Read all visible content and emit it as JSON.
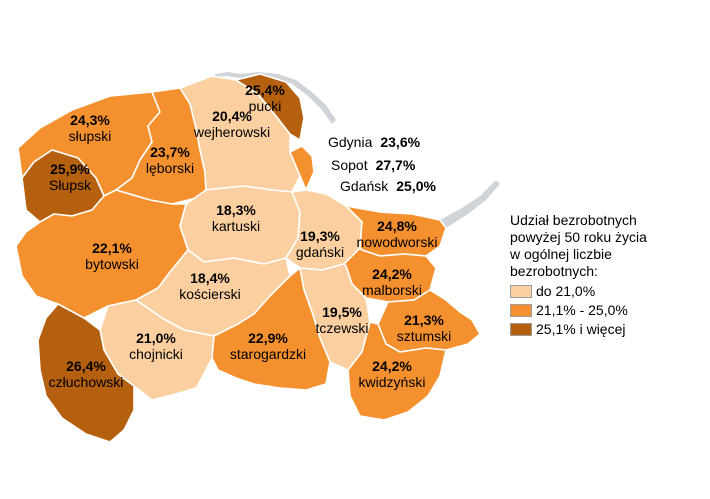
{
  "map": {
    "regions": [
      {
        "id": "slupski",
        "name": "słupski",
        "value": "24,3%",
        "class": "mid"
      },
      {
        "id": "slupsk",
        "name": "Słupsk",
        "value": "25,9%",
        "class": "high"
      },
      {
        "id": "leborski",
        "name": "lęborski",
        "value": "23,7%",
        "class": "mid"
      },
      {
        "id": "wejherowski",
        "name": "wejherowski",
        "value": "20,4%",
        "class": "low"
      },
      {
        "id": "pucki",
        "name": "pucki",
        "value": "25,4%",
        "class": "high"
      },
      {
        "id": "kartuski",
        "name": "kartuski",
        "value": "18,3%",
        "class": "low"
      },
      {
        "id": "gdanski",
        "name": "gdański",
        "value": "19,3%",
        "class": "low"
      },
      {
        "id": "nowodworski",
        "name": "nowodworski",
        "value": "24,8%",
        "class": "mid"
      },
      {
        "id": "bytowski",
        "name": "bytowski",
        "value": "22,1%",
        "class": "mid"
      },
      {
        "id": "koscierski",
        "name": "kościerski",
        "value": "18,4%",
        "class": "low"
      },
      {
        "id": "malborski",
        "name": "malborski",
        "value": "24,2%",
        "class": "mid"
      },
      {
        "id": "tczewski",
        "name": "tczewski",
        "value": "19,5%",
        "class": "low"
      },
      {
        "id": "sztumski",
        "name": "sztumski",
        "value": "21,3%",
        "class": "mid"
      },
      {
        "id": "chojnicki",
        "name": "chojnicki",
        "value": "21,0%",
        "class": "low"
      },
      {
        "id": "starogardzki",
        "name": "starogardzki",
        "value": "22,9%",
        "class": "mid"
      },
      {
        "id": "kwidzynski",
        "name": "kwidzyński",
        "value": "24,2%",
        "class": "mid"
      },
      {
        "id": "czluchowski",
        "name": "człuchowski",
        "value": "26,4%",
        "class": "high"
      }
    ],
    "cities": [
      {
        "name": "Gdynia",
        "value": "23,6%"
      },
      {
        "name": "Sopot",
        "value": "27,7%"
      },
      {
        "name": "Gdańsk",
        "value": "25,0%"
      }
    ]
  },
  "legend": {
    "title_lines": [
      "Udział bezrobotnych",
      "powyżej 50 roku życia",
      "w ogólnej liczbie",
      "bezrobotnych:"
    ],
    "items": [
      {
        "class": "low",
        "label": "do 21,0%"
      },
      {
        "class": "mid",
        "label": "21,1% - 25,0%"
      },
      {
        "class": "high",
        "label": "25,1% i więcej"
      }
    ]
  },
  "colors": {
    "low": "#fbcf9f",
    "mid": "#f5902e",
    "high": "#b5600e",
    "coast": "#d0d4d8"
  }
}
